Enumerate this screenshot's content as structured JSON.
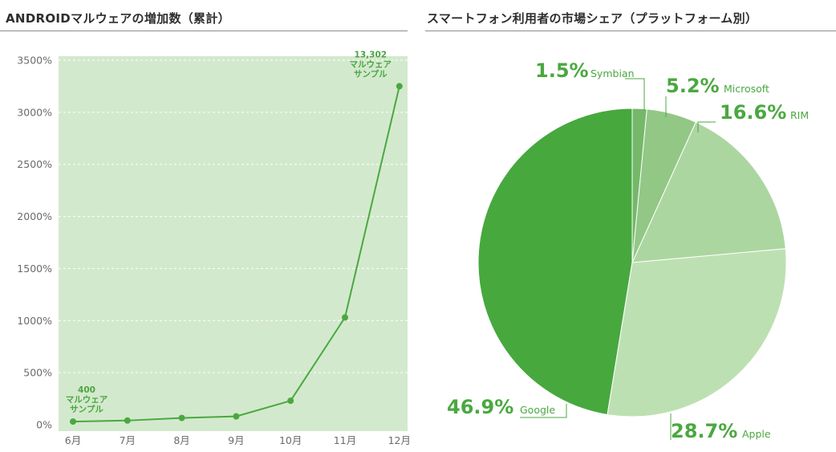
{
  "titles": {
    "left": "ANDROIDマルウェアの増加数（累計）",
    "right": "スマートフォン利用者の市場シェア（プラットフォーム別）"
  },
  "colors": {
    "plot_bg": "#d3e9cd",
    "line": "#4aa840",
    "grid": "#ffffff",
    "pie": [
      "#47a83e",
      "#bde0b3",
      "#acd6a0",
      "#92c786",
      "#75b869"
    ]
  },
  "chart_data": [
    {
      "type": "line",
      "categories": [
        "6月",
        "7月",
        "8月",
        "9月",
        "10月",
        "11月",
        "12月"
      ],
      "series": [
        {
          "values": [
            30,
            40,
            65,
            80,
            230,
            1030,
            3250
          ]
        }
      ],
      "ylim": [
        0,
        3500
      ],
      "yticks": [
        "0%",
        "500%",
        "1000%",
        "1500%",
        "2000%",
        "2500%",
        "3000%",
        "3500%"
      ],
      "ytick_values": [
        0,
        500,
        1000,
        1500,
        2000,
        2500,
        3000,
        3500
      ],
      "grid": "horizontal dashed",
      "annotations": [
        {
          "point": 0,
          "lines": [
            "400",
            "マルウェア",
            "サンプル"
          ]
        },
        {
          "point": 6,
          "lines": [
            "13,302",
            "マルウェア",
            "サンプル"
          ]
        }
      ]
    },
    {
      "type": "pie",
      "slices": [
        {
          "label": "Google",
          "value": 46.9,
          "pct_text": "46.9%"
        },
        {
          "label": "Apple",
          "value": 28.7,
          "pct_text": "28.7%"
        },
        {
          "label": "RIM",
          "value": 16.6,
          "pct_text": "16.6%"
        },
        {
          "label": "Microsoft",
          "value": 5.2,
          "pct_text": "5.2%"
        },
        {
          "label": "Symbian",
          "value": 1.5,
          "pct_text": "1.5%"
        }
      ]
    }
  ]
}
